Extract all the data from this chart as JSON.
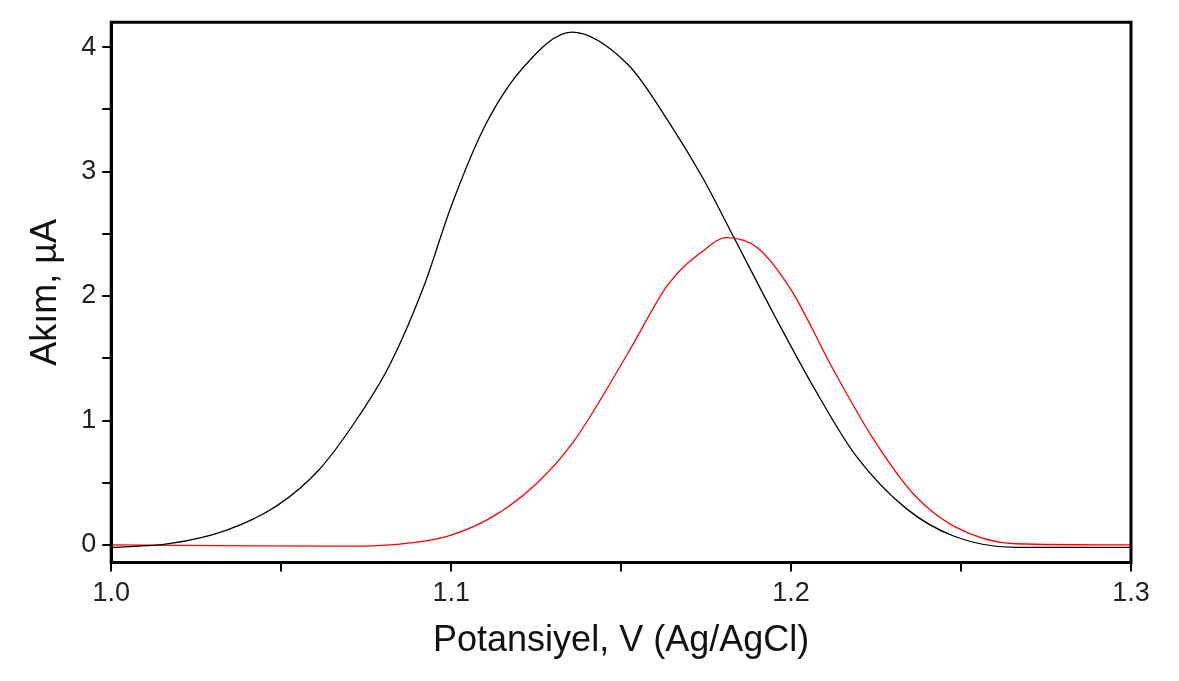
{
  "chart_data": {
    "type": "line",
    "xlabel": "Potansiyel, V (Ag/AgCl)",
    "ylabel": "Akım, µA",
    "xlim": [
      1.0,
      1.3
    ],
    "xticks": [
      {
        "value": 1.0,
        "label": "1.0"
      },
      {
        "value": 1.05,
        "label": null
      },
      1.1,
      {
        "value": 1.15,
        "label": null
      },
      1.2,
      {
        "value": 1.25,
        "label": null
      },
      1.3
    ],
    "ylim": [
      -0.14,
      4.2
    ],
    "yticks": [
      0,
      {
        "value": 0.5,
        "label": null
      },
      1,
      {
        "value": 1.5,
        "label": null
      },
      2,
      {
        "value": 2.5,
        "label": null
      },
      3,
      {
        "value": 3.5,
        "label": null
      },
      4
    ],
    "grid": false,
    "legend": false,
    "marker": "none",
    "line_style": "solid",
    "series": [
      {
        "color": "#000000",
        "x": [
          1.0,
          1.017,
          1.034,
          1.049,
          1.061,
          1.072,
          1.082,
          1.092,
          1.1,
          1.11,
          1.121,
          1.1355,
          1.152,
          1.164,
          1.174,
          1.183,
          1.195,
          1.207,
          1.219,
          1.234,
          1.248,
          1.266,
          1.3
        ],
        "values": [
          -0.02,
          0.01,
          0.12,
          0.32,
          0.6,
          1.0,
          1.45,
          2.08,
          2.72,
          3.37,
          3.83,
          4.12,
          3.86,
          3.4,
          2.95,
          2.48,
          1.85,
          1.25,
          0.72,
          0.29,
          0.07,
          -0.02,
          -0.02
        ]
      },
      {
        "color": "#ff0000",
        "x": [
          1.0,
          1.07,
          1.082,
          1.1,
          1.113,
          1.125,
          1.136,
          1.152,
          1.164,
          1.174,
          1.181,
          1.19,
          1.2,
          1.212,
          1.224,
          1.236,
          1.248,
          1.266,
          1.3
        ],
        "values": [
          0,
          -0.01,
          0,
          0.08,
          0.24,
          0.49,
          0.83,
          1.54,
          2.1,
          2.36,
          2.47,
          2.39,
          2.05,
          1.43,
          0.86,
          0.41,
          0.15,
          0.01,
          0
        ]
      }
    ]
  }
}
